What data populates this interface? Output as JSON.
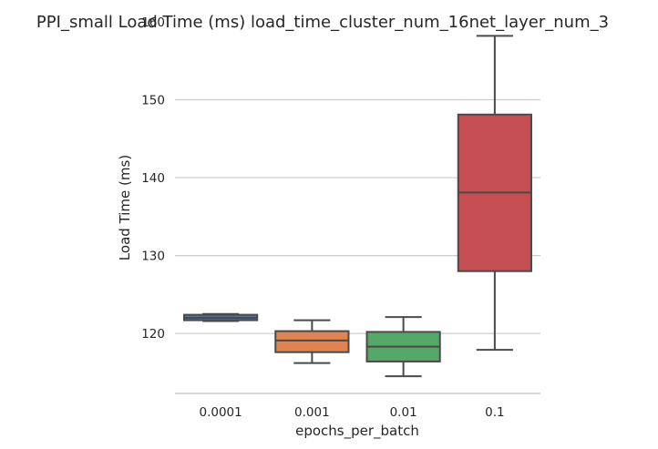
{
  "chart_data": {
    "type": "box",
    "title": "PPI_small Load Time (ms) load_time_cluster_num_16net_layer_num_3",
    "xlabel": "epochs_per_batch",
    "ylabel": "Load Time (ms)",
    "categories": [
      "0.0001",
      "0.001",
      "0.01",
      "0.1"
    ],
    "yticks": [
      120,
      130,
      140,
      150,
      160
    ],
    "ylim": [
      112.3,
      160
    ],
    "grid": "horizontal",
    "boxes": [
      {
        "category": "0.0001",
        "whisker_low": 121.6,
        "q1": 121.7,
        "median": 122.0,
        "q3": 122.4,
        "whisker_high": 122.5,
        "color": "#4c72b0"
      },
      {
        "category": "0.001",
        "whisker_low": 116.2,
        "q1": 117.6,
        "median": 119.1,
        "q3": 120.3,
        "whisker_high": 121.7,
        "color": "#dd8452"
      },
      {
        "category": "0.01",
        "whisker_low": 114.5,
        "q1": 116.4,
        "median": 118.3,
        "q3": 120.2,
        "whisker_high": 122.1,
        "color": "#55a868"
      },
      {
        "category": "0.1",
        "whisker_low": 117.9,
        "q1": 128.0,
        "median": 138.1,
        "q3": 148.1,
        "whisker_high": 158.2,
        "color": "#c44e52"
      }
    ]
  }
}
